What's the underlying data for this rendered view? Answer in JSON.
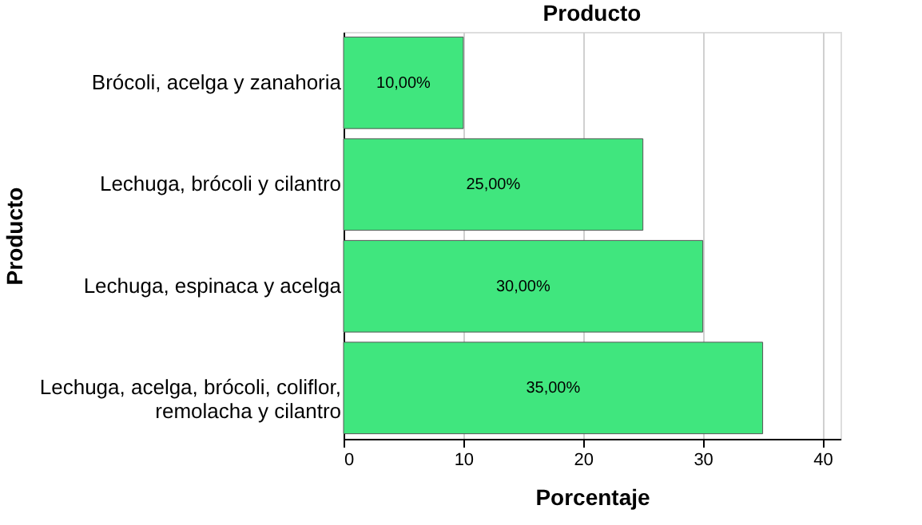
{
  "chart_data": {
    "type": "bar",
    "orientation": "horizontal",
    "title": "Producto",
    "xlabel": "Porcentaje",
    "ylabel": "Producto",
    "categories": [
      "Brócoli, acelga y zanahoria",
      "Lechuga, brócoli y cilantro",
      "Lechuga, espinaca y acelga",
      "Lechuga, acelga, brócoli, coliflor,\nremolacha y cilantro"
    ],
    "values": [
      10,
      25,
      30,
      35
    ],
    "value_labels": [
      "10,00%",
      "25,00%",
      "30,00%",
      "35,00%"
    ],
    "color": "#40e67e",
    "xlim": [
      0,
      41.5
    ],
    "xticks": [
      0,
      10,
      20,
      30,
      40
    ],
    "grid": "x"
  }
}
